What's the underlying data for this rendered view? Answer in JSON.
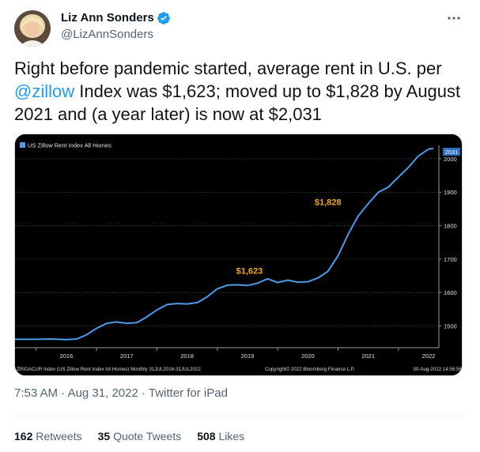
{
  "author": {
    "display_name": "Liz Ann Sonders",
    "handle": "@LizAnnSonders",
    "verified": true,
    "verified_color": "#1d9bf0",
    "avatar_icon": "avatar-photo"
  },
  "tweet": {
    "text_before": "Right before pandemic started, average rent in U.S. per ",
    "mention": "@zillow",
    "text_after": " Index was $1,623; moved up to $1,828 by August 2021 and (a year later) is now at $2,031",
    "mention_color": "#1d9bf0"
  },
  "meta": {
    "time": "7:53 AM",
    "separator": "·",
    "date": "Aug 31, 2022",
    "source": "Twitter for iPad"
  },
  "stats": {
    "retweets": {
      "count": "162",
      "label": "Retweets"
    },
    "quotes": {
      "count": "35",
      "label": "Quote Tweets"
    },
    "likes": {
      "count": "508",
      "label": "Likes"
    }
  },
  "chart_data": {
    "type": "line",
    "legend": "US Zillow Rent Index All Homes",
    "line_color": "#4a9be8",
    "background": "#000000",
    "x_tick_labels": [
      "2016",
      "2017",
      "2018",
      "2019",
      "2020",
      "2021",
      "2022"
    ],
    "y_tick_labels": [
      "1500",
      "1600",
      "1700",
      "1800",
      "1900",
      "2000"
    ],
    "ylim": [
      1435,
      2040
    ],
    "last_value_label": "2031",
    "annotations": [
      {
        "text": "$1,623",
        "x": 2019.6,
        "y": 1623
      },
      {
        "text": "$1,828",
        "x": 2020.9,
        "y": 1828
      }
    ],
    "footer_left": "ZRIOACUR Index (US Zillow Rent Index All Homes) Monthly 31JUL2016-31JUL2022",
    "footer_center": "Copyright© 2022 Bloomberg Finance L.P.",
    "footer_right": "30-Aug-2022 14:56:56",
    "series": [
      {
        "name": "US Zillow Rent Index All Homes",
        "x": [
          2016.0,
          2016.25,
          2016.5,
          2016.67,
          2016.83,
          2017.0,
          2017.17,
          2017.33,
          2017.5,
          2017.67,
          2017.83,
          2018.0,
          2018.17,
          2018.33,
          2018.5,
          2018.67,
          2018.83,
          2019.0,
          2019.17,
          2019.33,
          2019.5,
          2019.67,
          2019.83,
          2020.0,
          2020.17,
          2020.33,
          2020.5,
          2020.67,
          2020.83,
          2021.0,
          2021.17,
          2021.33,
          2021.5,
          2021.67,
          2021.83,
          2022.0,
          2022.17,
          2022.33,
          2022.5,
          2022.58
        ],
        "y": [
          1460,
          1461,
          1459,
          1461,
          1473,
          1493,
          1508,
          1512,
          1508,
          1510,
          1527,
          1548,
          1564,
          1567,
          1566,
          1570,
          1587,
          1611,
          1622,
          1623,
          1621,
          1628,
          1641,
          1630,
          1637,
          1631,
          1632,
          1644,
          1663,
          1710,
          1775,
          1828,
          1866,
          1900,
          1915,
          1945,
          1975,
          2008,
          2029,
          2031
        ]
      }
    ]
  }
}
